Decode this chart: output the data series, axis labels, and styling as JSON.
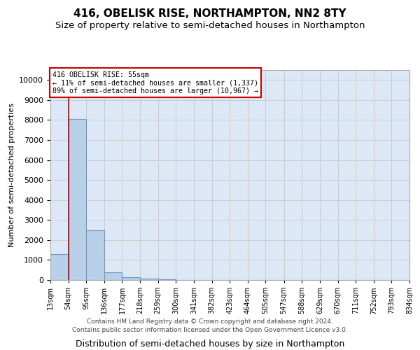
{
  "title": "416, OBELISK RISE, NORTHAMPTON, NN2 8TY",
  "subtitle": "Size of property relative to semi-detached houses in Northampton",
  "xlabel": "Distribution of semi-detached houses by size in Northampton",
  "ylabel": "Number of semi-detached properties",
  "footnote1": "Contains HM Land Registry data © Crown copyright and database right 2024.",
  "footnote2": "Contains public sector information licensed under the Open Government Licence v3.0.",
  "annotation_title": "416 OBELISK RISE: 55sqm",
  "annotation_line1": "← 11% of semi-detached houses are smaller (1,337)",
  "annotation_line2": "89% of semi-detached houses are larger (10,967) →",
  "property_size_sqm": 55,
  "bar_edges": [
    13,
    54,
    95,
    136,
    177,
    218,
    259,
    300,
    341,
    382,
    423,
    464,
    505,
    547,
    588,
    629,
    670,
    711,
    752,
    793,
    834
  ],
  "bar_heights": [
    1300,
    8050,
    2500,
    390,
    140,
    60,
    20,
    10,
    5,
    3,
    2,
    2,
    1,
    1,
    1,
    0,
    0,
    0,
    0,
    0
  ],
  "bar_color": "#b8d0e8",
  "bar_edge_color": "#6699cc",
  "highlight_line_color": "#cc0000",
  "ylim_max": 10500,
  "yticks": [
    0,
    1000,
    2000,
    3000,
    4000,
    5000,
    6000,
    7000,
    8000,
    9000,
    10000
  ],
  "grid_color": "#cccccc",
  "bg_color": "#dce8f5",
  "annotation_box_edge": "#cc0000",
  "title_fontsize": 11,
  "subtitle_fontsize": 9.5,
  "tick_label_fontsize": 7,
  "ylabel_fontsize": 8,
  "xlabel_fontsize": 9,
  "footnote_fontsize": 6.5
}
